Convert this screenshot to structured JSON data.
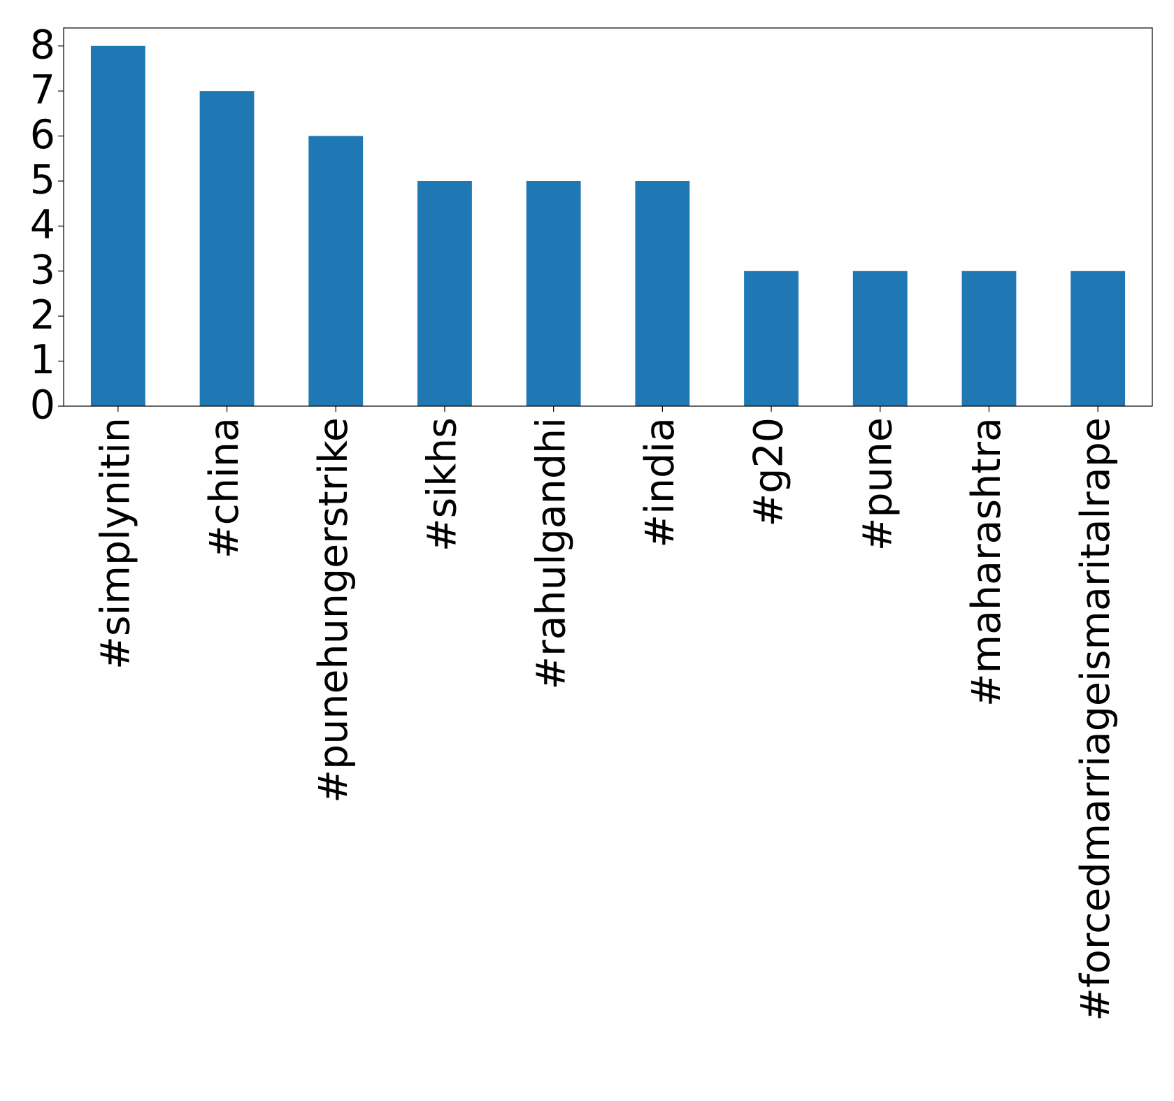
{
  "chart_data": {
    "type": "bar",
    "categories": [
      "#simplynitin",
      "#china",
      "#punehungerstrike",
      "#sikhs",
      "#rahulgandhi",
      "#india",
      "#g20",
      "#pune",
      "#maharashtra",
      "#forcedmarriageismaritalrape"
    ],
    "values": [
      8,
      7,
      6,
      5,
      5,
      5,
      3,
      3,
      3,
      3
    ],
    "color": "#1f77b4",
    "ylim": [
      0,
      8.4
    ],
    "yticks": [
      0,
      1,
      2,
      3,
      4,
      5,
      6,
      7,
      8
    ],
    "grid": false
  }
}
